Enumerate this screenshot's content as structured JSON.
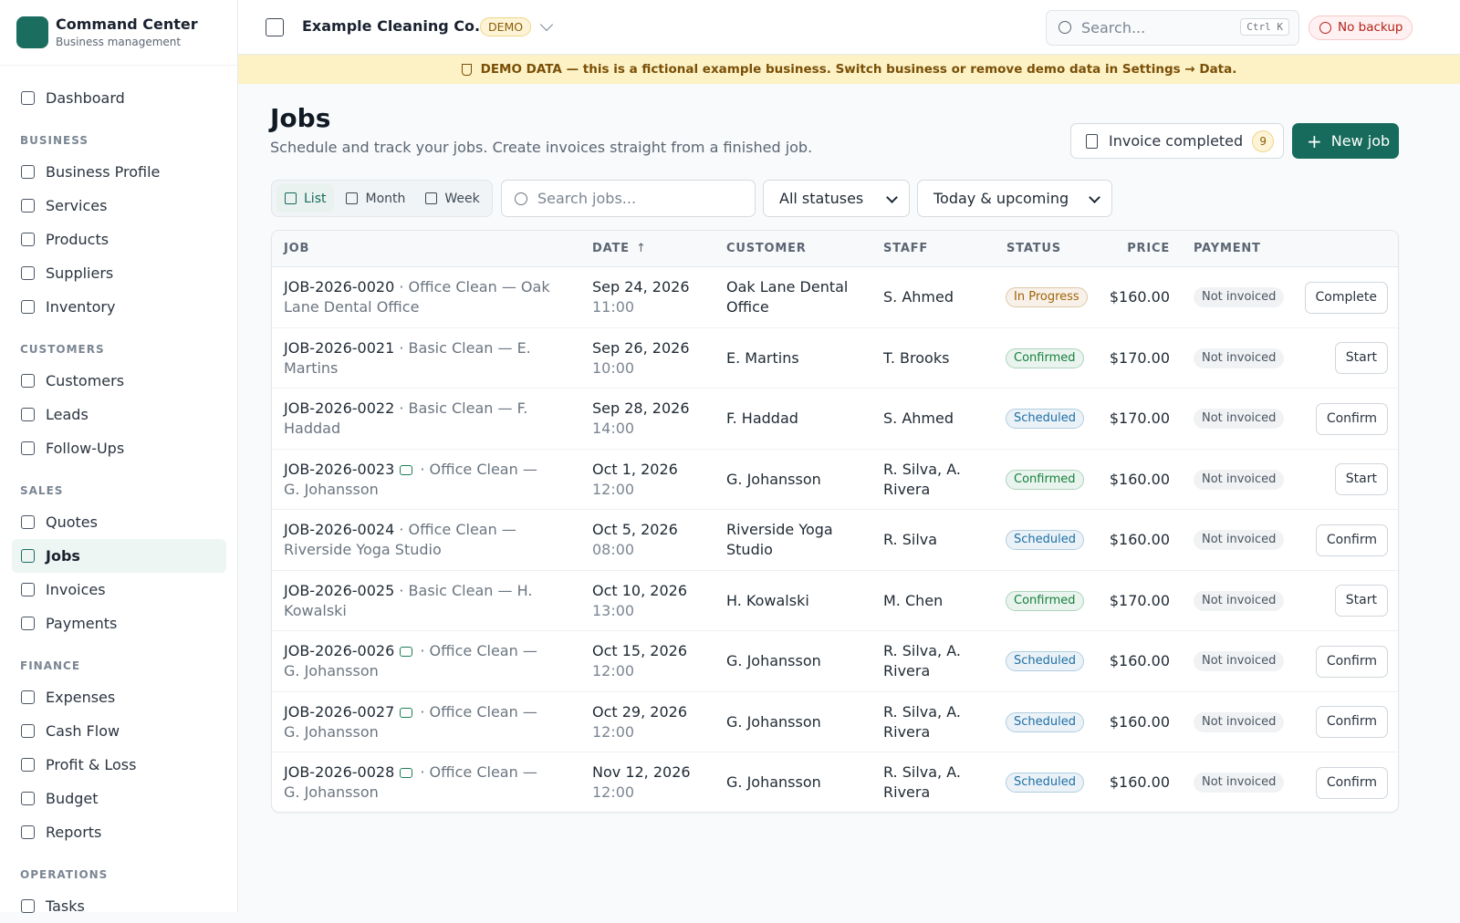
{
  "app": {
    "name": "Command Center",
    "subtitle": "Business management"
  },
  "nav": {
    "top": [
      {
        "label": "Dashboard"
      }
    ],
    "sections": [
      {
        "title": "BUSINESS",
        "items": [
          {
            "label": "Business Profile"
          },
          {
            "label": "Services"
          },
          {
            "label": "Products"
          },
          {
            "label": "Suppliers"
          },
          {
            "label": "Inventory"
          }
        ]
      },
      {
        "title": "CUSTOMERS",
        "items": [
          {
            "label": "Customers"
          },
          {
            "label": "Leads"
          },
          {
            "label": "Follow-Ups"
          }
        ]
      },
      {
        "title": "SALES",
        "items": [
          {
            "label": "Quotes"
          },
          {
            "label": "Jobs",
            "active": true
          },
          {
            "label": "Invoices"
          },
          {
            "label": "Payments"
          }
        ]
      },
      {
        "title": "FINANCE",
        "items": [
          {
            "label": "Expenses"
          },
          {
            "label": "Cash Flow"
          },
          {
            "label": "Profit & Loss"
          },
          {
            "label": "Budget"
          },
          {
            "label": "Reports"
          }
        ]
      },
      {
        "title": "OPERATIONS",
        "items": [
          {
            "label": "Tasks"
          }
        ]
      }
    ]
  },
  "header": {
    "business": "Example Cleaning Co.",
    "badge": "DEMO",
    "search": "Search...",
    "shortcut": "Ctrl K",
    "backup": "No backup"
  },
  "banner": "DEMO DATA — this is a fictional example business. Switch business or remove demo data in Settings → Data.",
  "page": {
    "title": "Jobs",
    "subtitle": "Schedule and track your jobs. Create invoices straight from a finished job.",
    "invoice_button": "Invoice completed",
    "invoice_count": "9",
    "new_button": "New job",
    "views": [
      {
        "label": "List",
        "active": true
      },
      {
        "label": "Month"
      },
      {
        "label": "Week"
      }
    ],
    "search": "Search jobs...",
    "status_filter": "All statuses",
    "range_filter": "Today & upcoming"
  },
  "table": {
    "columns": [
      "JOB",
      "DATE",
      "CUSTOMER",
      "STAFF",
      "STATUS",
      "PRICE",
      "PAYMENT"
    ],
    "rows": [
      {
        "id": "JOB-2026-0020",
        "recurring": false,
        "service": "Office Clean — Oak Lane Dental Office",
        "date": "Sep 24, 2026",
        "time": "11:00",
        "customer": "Oak Lane Dental Office",
        "staff": "S. Ahmed",
        "status": "In Progress",
        "status_color": "#a16207",
        "price": "$160.00",
        "payment": "Not invoiced",
        "action": "Complete"
      },
      {
        "id": "JOB-2026-0021",
        "recurring": false,
        "service": "Basic Clean — E. Martins",
        "date": "Sep 26, 2026",
        "time": "10:00",
        "customer": "E. Martins",
        "staff": "T. Brooks",
        "status": "Confirmed",
        "status_color": "#15803d",
        "price": "$170.00",
        "payment": "Not invoiced",
        "action": "Start"
      },
      {
        "id": "JOB-2026-0022",
        "recurring": false,
        "service": "Basic Clean — F. Haddad",
        "date": "Sep 28, 2026",
        "time": "14:00",
        "customer": "F. Haddad",
        "staff": "S. Ahmed",
        "status": "Scheduled",
        "status_color": "#1d6fa5",
        "price": "$170.00",
        "payment": "Not invoiced",
        "action": "Confirm"
      },
      {
        "id": "JOB-2026-0023",
        "recurring": true,
        "service": "Office Clean — G. Johansson",
        "date": "Oct 1, 2026",
        "time": "12:00",
        "customer": "G. Johansson",
        "staff": "R. Silva, A. Rivera",
        "status": "Confirmed",
        "status_color": "#15803d",
        "price": "$160.00",
        "payment": "Not invoiced",
        "action": "Start"
      },
      {
        "id": "JOB-2026-0024",
        "recurring": false,
        "service": "Office Clean — Riverside Yoga Studio",
        "date": "Oct 5, 2026",
        "time": "08:00",
        "customer": "Riverside Yoga Studio",
        "staff": "R. Silva",
        "status": "Scheduled",
        "status_color": "#1d6fa5",
        "price": "$160.00",
        "payment": "Not invoiced",
        "action": "Confirm"
      },
      {
        "id": "JOB-2026-0025",
        "recurring": false,
        "service": "Basic Clean — H. Kowalski",
        "date": "Oct 10, 2026",
        "time": "13:00",
        "customer": "H. Kowalski",
        "staff": "M. Chen",
        "status": "Confirmed",
        "status_color": "#15803d",
        "price": "$170.00",
        "payment": "Not invoiced",
        "action": "Start"
      },
      {
        "id": "JOB-2026-0026",
        "recurring": true,
        "service": "Office Clean — G. Johansson",
        "date": "Oct 15, 2026",
        "time": "12:00",
        "customer": "G. Johansson",
        "staff": "R. Silva, A. Rivera",
        "status": "Scheduled",
        "status_color": "#1d6fa5",
        "price": "$160.00",
        "payment": "Not invoiced",
        "action": "Confirm"
      },
      {
        "id": "JOB-2026-0027",
        "recurring": true,
        "service": "Office Clean — G. Johansson",
        "date": "Oct 29, 2026",
        "time": "12:00",
        "customer": "G. Johansson",
        "staff": "R. Silva, A. Rivera",
        "status": "Scheduled",
        "status_color": "#1d6fa5",
        "price": "$160.00",
        "payment": "Not invoiced",
        "action": "Confirm"
      },
      {
        "id": "JOB-2026-0028",
        "recurring": true,
        "service": "Office Clean — G. Johansson",
        "date": "Nov 12, 2026",
        "time": "12:00",
        "customer": "G. Johansson",
        "staff": "R. Silva, A. Rivera",
        "status": "Scheduled",
        "status_color": "#1d6fa5",
        "price": "$160.00",
        "payment": "Not invoiced",
        "action": "Confirm"
      }
    ]
  }
}
